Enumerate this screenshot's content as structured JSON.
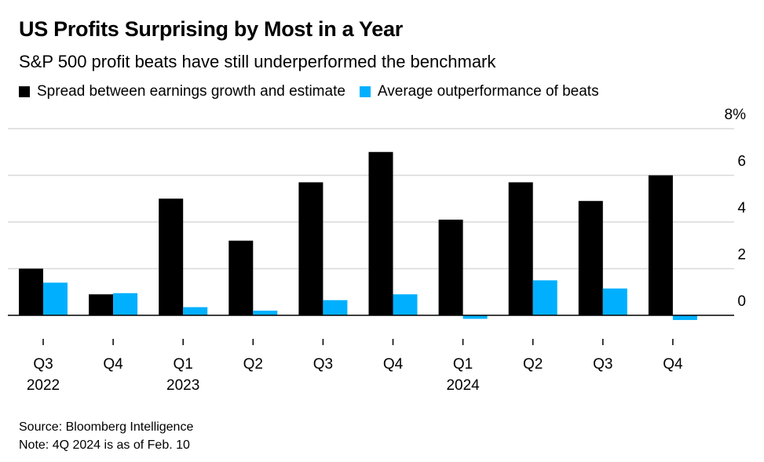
{
  "title": "US Profits Surprising by Most in a Year",
  "subtitle": "S&P 500 profit beats have still underperformed the benchmark",
  "legend": [
    {
      "label": "Spread between earnings growth and estimate",
      "color": "#000000"
    },
    {
      "label": "Average outperformance of beats",
      "color": "#00b0ff"
    }
  ],
  "chart_data": {
    "type": "bar",
    "categories": [
      "Q3 2022",
      "Q4 2022",
      "Q1 2023",
      "Q2 2023",
      "Q3 2023",
      "Q4 2023",
      "Q1 2024",
      "Q2 2024",
      "Q3 2024",
      "Q4 2024"
    ],
    "tick_labels": [
      {
        "quarter": "Q3",
        "year": "2022"
      },
      {
        "quarter": "Q4",
        "year": ""
      },
      {
        "quarter": "Q1",
        "year": "2023"
      },
      {
        "quarter": "Q2",
        "year": ""
      },
      {
        "quarter": "Q3",
        "year": ""
      },
      {
        "quarter": "Q4",
        "year": ""
      },
      {
        "quarter": "Q1",
        "year": "2024"
      },
      {
        "quarter": "Q2",
        "year": ""
      },
      {
        "quarter": "Q3",
        "year": ""
      },
      {
        "quarter": "Q4",
        "year": ""
      }
    ],
    "series": [
      {
        "name": "Spread between earnings growth and estimate",
        "color": "#000000",
        "values": [
          2.0,
          0.9,
          5.0,
          3.2,
          5.7,
          7.0,
          4.1,
          5.7,
          4.9,
          6.0
        ]
      },
      {
        "name": "Average outperformance of beats",
        "color": "#00b0ff",
        "values": [
          1.4,
          0.95,
          0.35,
          0.2,
          0.65,
          0.9,
          -0.15,
          1.5,
          1.15,
          -0.2
        ]
      }
    ],
    "ylim": [
      0,
      8
    ],
    "yticks": [
      0,
      2,
      4,
      6,
      8
    ],
    "ytick_labels": [
      "0",
      "2",
      "4",
      "6",
      "8%"
    ],
    "y_axis_position": "right",
    "grid": true
  },
  "footer": {
    "source": "Source: Bloomberg Intelligence",
    "note": "Note: 4Q 2024 is as of Feb. 10"
  }
}
